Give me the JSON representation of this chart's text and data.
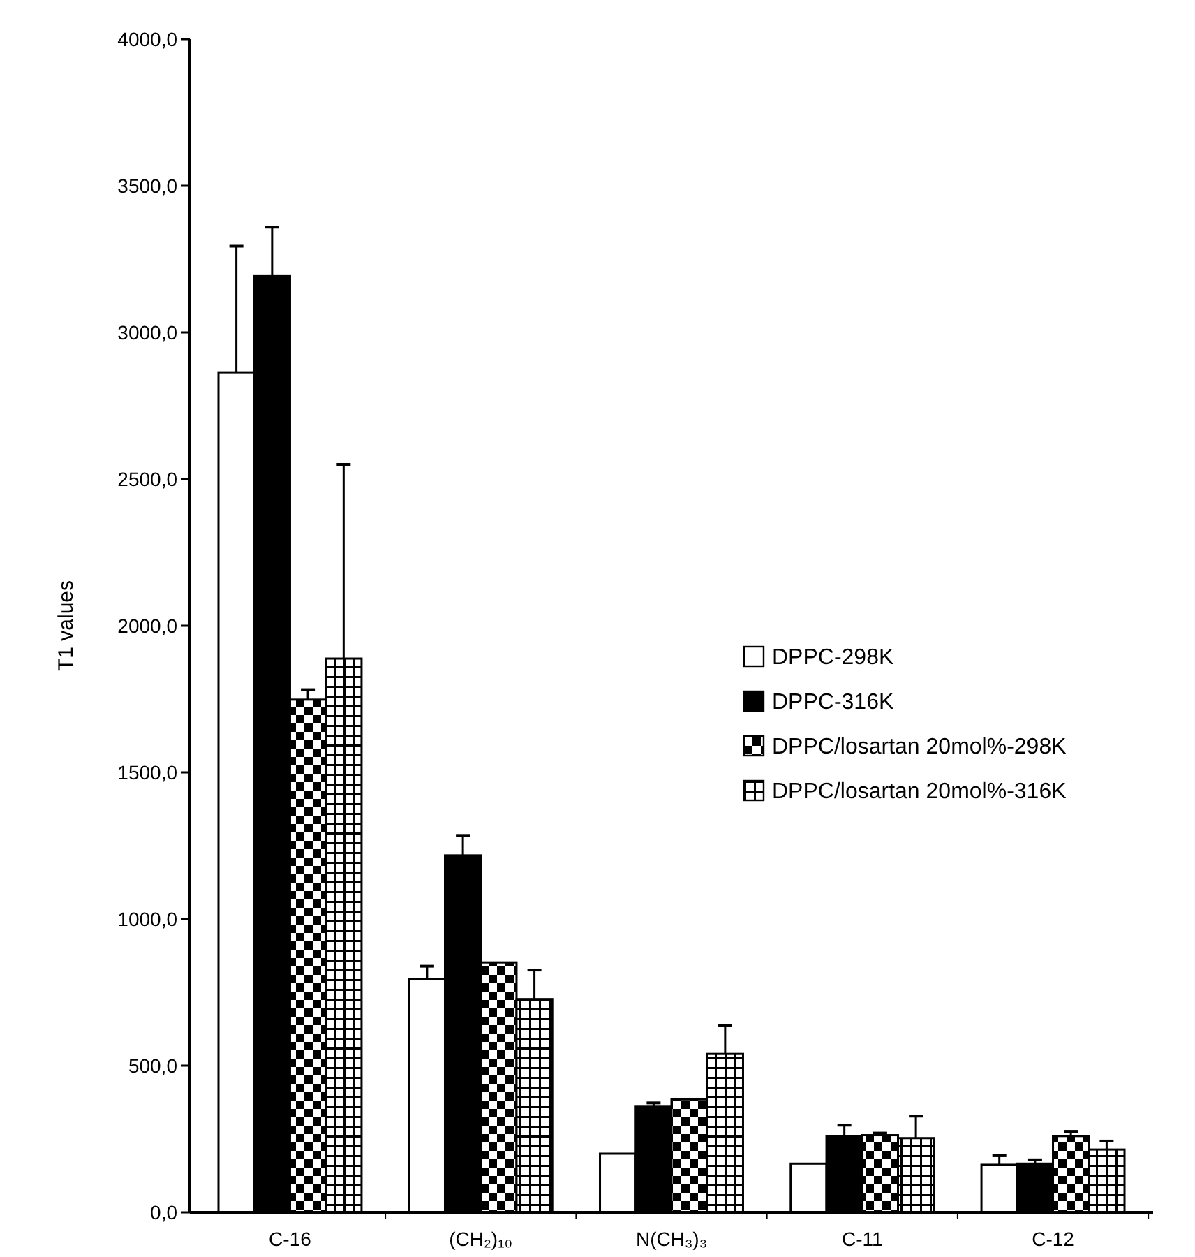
{
  "chart_data": {
    "type": "bar",
    "ylabel": "T1 values",
    "categories": [
      "C-16",
      "(CH₂)₁₀",
      "N(CH₃)₃",
      "C-11",
      "C-12"
    ],
    "ylim": [
      0,
      4000
    ],
    "yticks": [
      {
        "value": 0,
        "label": "0,0"
      },
      {
        "value": 500,
        "label": "500,0"
      },
      {
        "value": 1000,
        "label": "1000,0"
      },
      {
        "value": 1500,
        "label": "1500,0"
      },
      {
        "value": 2000,
        "label": "2000,0"
      },
      {
        "value": 2500,
        "label": "2500,0"
      },
      {
        "value": 3000,
        "label": "3000,0"
      },
      {
        "value": 3500,
        "label": "3500,0"
      },
      {
        "value": 4000,
        "label": "4000,0"
      }
    ],
    "legend": "right",
    "grid": false,
    "series": [
      {
        "name": "DPPC-298K",
        "color": "#ffffff",
        "values": [
          2864,
          795,
          200,
          166,
          162
        ],
        "errors": [
          430,
          44,
          null,
          null,
          31
        ]
      },
      {
        "name": "DPPC-316K",
        "color": "#000000",
        "values": [
          3192,
          1217,
          360,
          260,
          166
        ],
        "errors": [
          167,
          68,
          13,
          37,
          13
        ]
      },
      {
        "name": "DPPC/losartan 20mol%-298K",
        "color": "#000000",
        "values": [
          1748,
          852,
          385,
          263,
          260
        ],
        "errors": [
          34,
          null,
          null,
          7,
          16
        ]
      },
      {
        "name": "DPPC/losartan 20mol%-316K",
        "color": "#000000",
        "values": [
          1888,
          727,
          540,
          253,
          214
        ],
        "errors": [
          662,
          99,
          98,
          75,
          29
        ]
      }
    ]
  }
}
